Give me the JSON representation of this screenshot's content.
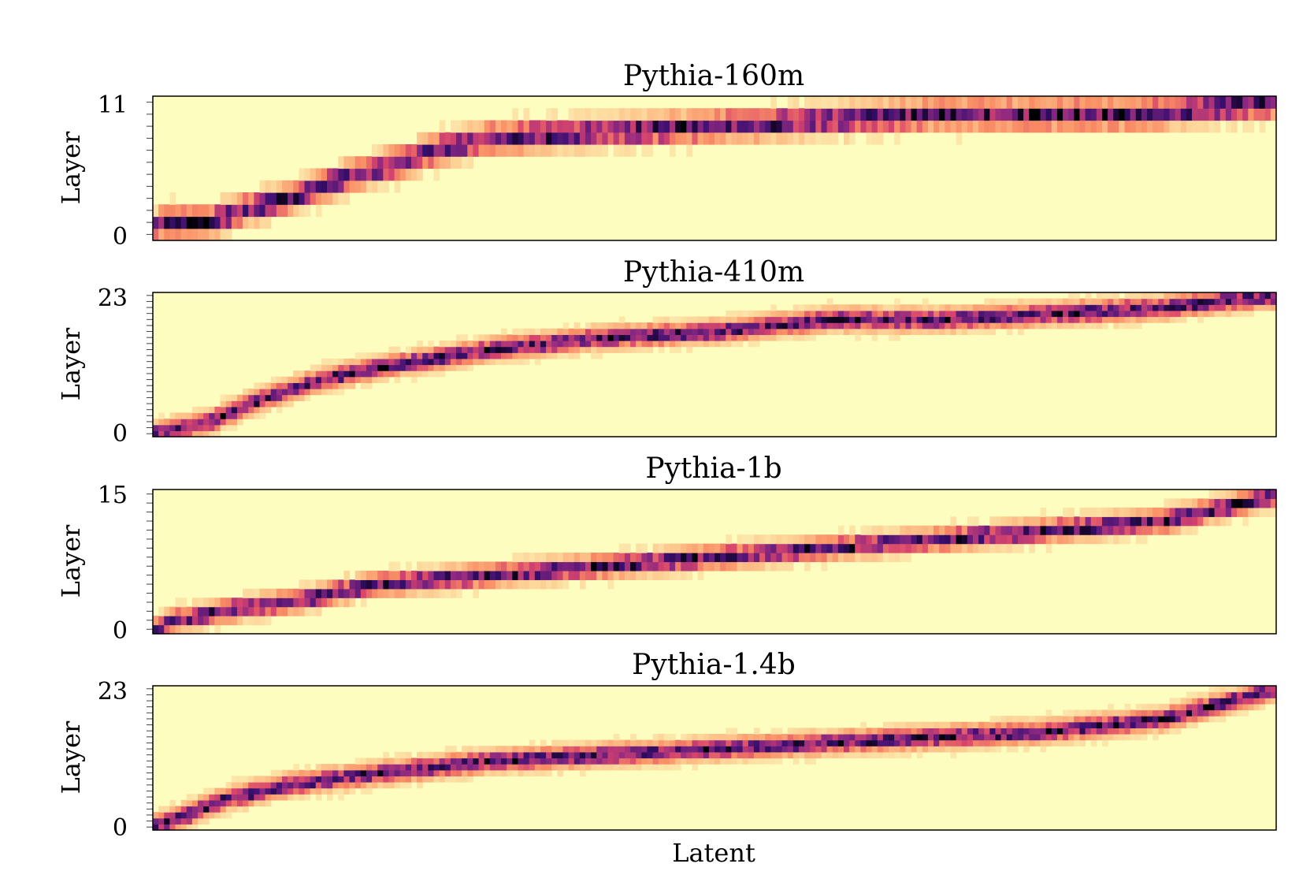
{
  "chart_data": [
    {
      "type": "heatmap",
      "title": "Pythia-160m",
      "xlabel": "",
      "ylabel": "Layer",
      "y_ticks": [
        "0",
        "11"
      ],
      "layers": 12,
      "peak_layer_by_latent_fraction": [
        [
          0.0,
          0
        ],
        [
          0.005,
          1
        ],
        [
          0.05,
          1
        ],
        [
          0.08,
          2
        ],
        [
          0.12,
          3
        ],
        [
          0.15,
          4
        ],
        [
          0.18,
          5
        ],
        [
          0.22,
          6
        ],
        [
          0.25,
          7
        ],
        [
          0.3,
          8
        ],
        [
          0.5,
          9
        ],
        [
          0.7,
          10
        ],
        [
          0.88,
          10
        ],
        [
          1.0,
          11
        ]
      ],
      "colorscale": [
        "#fcfdbf",
        "#fdc78d",
        "#f98e65",
        "#d8456c",
        "#8c2981",
        "#3b0f70",
        "#000004"
      ],
      "grid": false
    },
    {
      "type": "heatmap",
      "title": "Pythia-410m",
      "xlabel": "",
      "ylabel": "Layer",
      "y_ticks": [
        "0",
        "23"
      ],
      "layers": 24,
      "peak_layer_by_latent_fraction": [
        [
          0.0,
          0
        ],
        [
          0.05,
          2
        ],
        [
          0.1,
          6
        ],
        [
          0.15,
          9
        ],
        [
          0.2,
          11
        ],
        [
          0.3,
          14
        ],
        [
          0.4,
          16
        ],
        [
          0.5,
          17
        ],
        [
          0.6,
          19
        ],
        [
          0.7,
          19
        ],
        [
          0.8,
          20
        ],
        [
          0.9,
          21
        ],
        [
          1.0,
          23
        ]
      ],
      "colorscale": [
        "#fcfdbf",
        "#fdc78d",
        "#f98e65",
        "#d8456c",
        "#8c2981",
        "#3b0f70",
        "#000004"
      ],
      "grid": false
    },
    {
      "type": "heatmap",
      "title": "Pythia-1b",
      "xlabel": "",
      "ylabel": "Layer",
      "y_ticks": [
        "0",
        "15"
      ],
      "layers": 16,
      "peak_layer_by_latent_fraction": [
        [
          0.0,
          0
        ],
        [
          0.02,
          1
        ],
        [
          0.06,
          2
        ],
        [
          0.12,
          3
        ],
        [
          0.2,
          5
        ],
        [
          0.3,
          6
        ],
        [
          0.4,
          7
        ],
        [
          0.5,
          8
        ],
        [
          0.6,
          9
        ],
        [
          0.7,
          10
        ],
        [
          0.8,
          11
        ],
        [
          0.9,
          12
        ],
        [
          0.97,
          14
        ],
        [
          1.0,
          15
        ]
      ],
      "colorscale": [
        "#fcfdbf",
        "#fdc78d",
        "#f98e65",
        "#d8456c",
        "#8c2981",
        "#3b0f70",
        "#000004"
      ],
      "grid": false
    },
    {
      "type": "heatmap",
      "title": "Pythia-1.4b",
      "xlabel": "Latent",
      "ylabel": "Layer",
      "y_ticks": [
        "0",
        "23"
      ],
      "layers": 24,
      "peak_layer_by_latent_fraction": [
        [
          0.0,
          0
        ],
        [
          0.03,
          2
        ],
        [
          0.07,
          5
        ],
        [
          0.12,
          7
        ],
        [
          0.2,
          9
        ],
        [
          0.3,
          11
        ],
        [
          0.4,
          12
        ],
        [
          0.5,
          13
        ],
        [
          0.6,
          14
        ],
        [
          0.7,
          15
        ],
        [
          0.8,
          16
        ],
        [
          0.9,
          18
        ],
        [
          0.96,
          21
        ],
        [
          1.0,
          23
        ]
      ],
      "colorscale": [
        "#fcfdbf",
        "#fdc78d",
        "#f98e65",
        "#d8456c",
        "#8c2981",
        "#3b0f70",
        "#000004"
      ],
      "grid": false
    }
  ]
}
